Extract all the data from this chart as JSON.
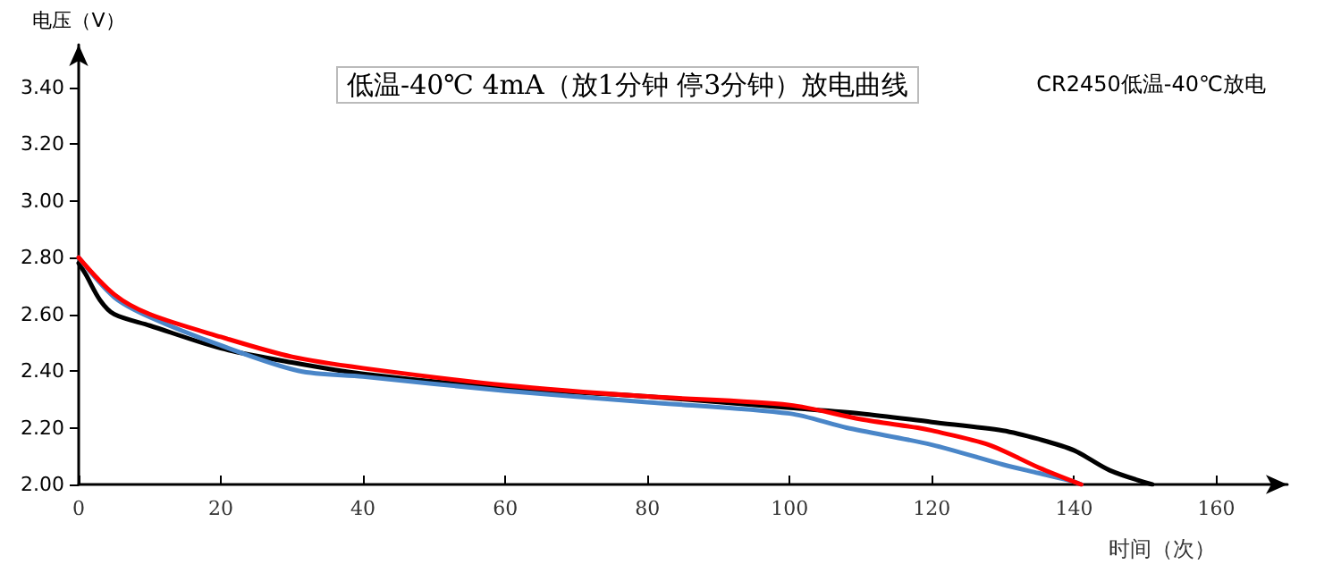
{
  "chart_data": {
    "type": "line",
    "title": "低温-40℃ 4mA（放1分钟 停3分钟）放电曲线",
    "annotations": [
      "CR2450低温-40℃放电"
    ],
    "xlabel": "时间（次）",
    "ylabel": "电压（V）",
    "xlim": [
      0,
      170
    ],
    "xticks": [
      0,
      20,
      40,
      60,
      80,
      100,
      120,
      140,
      160
    ],
    "ylim": [
      2,
      3.55
    ],
    "yticks": [
      {
        "value": 2,
        "label": "2.00"
      },
      {
        "value": 2.2,
        "label": "2.20"
      },
      {
        "value": 2.4,
        "label": "2.40"
      },
      {
        "value": 2.6,
        "label": "2.60"
      },
      {
        "value": 2.8,
        "label": "2.80"
      },
      {
        "value": 3,
        "label": "3.00"
      },
      {
        "value": 3.2,
        "label": "3.20"
      },
      {
        "value": 3.4,
        "label": "3.40"
      }
    ],
    "grid": false,
    "marker": "none",
    "line_style": "solid",
    "series": [
      {
        "color": "#000000",
        "x": [
          0,
          1,
          3,
          5,
          10,
          20,
          30,
          40,
          60,
          80,
          100,
          110,
          120,
          130,
          135,
          140,
          145,
          151
        ],
        "values": [
          2.78,
          2.74,
          2.65,
          2.6,
          2.56,
          2.48,
          2.43,
          2.39,
          2.34,
          2.31,
          2.27,
          2.25,
          2.22,
          2.19,
          2.16,
          2.12,
          2.05,
          2
        ]
      },
      {
        "color": "#4a86c8",
        "x": [
          0,
          5,
          10,
          20,
          31,
          40,
          60,
          80,
          100,
          108,
          120,
          130,
          135,
          140,
          141
        ],
        "values": [
          2.8,
          2.66,
          2.59,
          2.49,
          2.4,
          2.38,
          2.33,
          2.29,
          2.25,
          2.2,
          2.14,
          2.07,
          2.04,
          2.01,
          2
        ]
      },
      {
        "color": "#ff0000",
        "x": [
          0,
          5,
          10,
          20,
          30,
          40,
          60,
          80,
          100,
          110,
          118,
          120,
          128,
          135,
          141
        ],
        "values": [
          2.8,
          2.67,
          2.6,
          2.52,
          2.45,
          2.41,
          2.35,
          2.31,
          2.28,
          2.23,
          2.2,
          2.19,
          2.14,
          2.06,
          2
        ]
      }
    ]
  }
}
